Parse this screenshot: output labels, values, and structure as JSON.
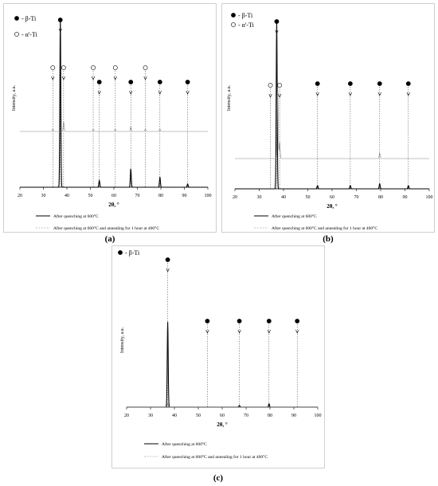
{
  "chart_data": [
    {
      "type": "line",
      "panel_label": "(a)",
      "xlabel": "2θ, °",
      "ylabel": "Intensity, a.u.",
      "xlim": [
        20,
        100
      ],
      "xticks": [
        20,
        30,
        40,
        50,
        60,
        70,
        80,
        90,
        100
      ],
      "legend_markers": [
        {
          "symbol": "filled",
          "text": "- β-Ti"
        },
        {
          "symbol": "open",
          "text": "- α'-Ti"
        }
      ],
      "series_legend": [
        {
          "style": "solid",
          "text": "After quenching at 600°C"
        },
        {
          "style": "dashed",
          "text": "After quenching at 600°C and annealing for 1 hour at 400°C"
        }
      ],
      "beta_peaks": [
        37.2,
        53.8,
        67.2,
        79.6,
        91.4
      ],
      "alpha_peaks": [
        34.0,
        38.6,
        51.2,
        60.6,
        73.4
      ],
      "series": [
        {
          "style": "solid",
          "peaks": [
            {
              "x": 37.2,
              "h": 1.0
            },
            {
              "x": 53.8,
              "h": 0.04
            },
            {
              "x": 67.2,
              "h": 0.11
            },
            {
              "x": 79.6,
              "h": 0.06
            },
            {
              "x": 91.4,
              "h": 0.02
            }
          ]
        },
        {
          "style": "dashed",
          "peaks": [
            {
              "x": 38.6,
              "h": 0.08
            },
            {
              "x": 34.0,
              "h": 0.02
            },
            {
              "x": 51.2,
              "h": 0.02
            },
            {
              "x": 60.6,
              "h": 0.02
            },
            {
              "x": 67.2,
              "h": 0.04
            },
            {
              "x": 73.4,
              "h": 0.02
            },
            {
              "x": 79.6,
              "h": 0.02
            }
          ]
        }
      ]
    },
    {
      "type": "line",
      "panel_label": "(b)",
      "xlabel": "2θ, °",
      "ylabel": "Intensity, a.u.",
      "xlim": [
        20,
        100
      ],
      "xticks": [
        20,
        30,
        40,
        50,
        60,
        70,
        80,
        90,
        100
      ],
      "legend_markers": [
        {
          "symbol": "filled",
          "text": "- β-Ti"
        },
        {
          "symbol": "open",
          "text": "- α'-Ti"
        }
      ],
      "series_legend": [
        {
          "style": "solid",
          "text": "After quenching at 600°C"
        },
        {
          "style": "dashed",
          "text": "After quenching at 600°C and annealing for 1 hour at 400°C"
        }
      ],
      "beta_peaks": [
        37.2,
        54.0,
        67.5,
        79.6,
        91.4
      ],
      "alpha_peaks": [
        34.6,
        38.4
      ],
      "series": [
        {
          "style": "solid",
          "peaks": [
            {
              "x": 37.2,
              "h": 1.0
            },
            {
              "x": 54.0,
              "h": 0.02
            },
            {
              "x": 67.5,
              "h": 0.02
            },
            {
              "x": 79.6,
              "h": 0.03
            },
            {
              "x": 91.4,
              "h": 0.02
            }
          ]
        },
        {
          "style": "dashed",
          "peaks": [
            {
              "x": 37.6,
              "h": 0.55
            },
            {
              "x": 38.4,
              "h": 0.12
            },
            {
              "x": 79.6,
              "h": 0.04
            }
          ]
        }
      ]
    },
    {
      "type": "line",
      "panel_label": "(c)",
      "xlabel": "2θ, °",
      "ylabel": "Intensity, a.u.",
      "xlim": [
        20,
        100
      ],
      "xticks": [
        20,
        30,
        40,
        50,
        60,
        70,
        80,
        90,
        100
      ],
      "legend_markers": [
        {
          "symbol": "filled",
          "text": "- β-Ti"
        }
      ],
      "series_legend": [
        {
          "style": "solid",
          "text": "After quenching at 600°C"
        },
        {
          "style": "dashed",
          "text": "After quenching at 600°C and annealing for 1 hour at 400°C"
        }
      ],
      "beta_peaks": [
        37.2,
        53.8,
        67.2,
        79.6,
        91.4
      ],
      "alpha_peaks": [],
      "series": [
        {
          "style": "solid",
          "peaks": [
            {
              "x": 37.2,
              "h": 1.0
            },
            {
              "x": 67.2,
              "h": 0.02
            },
            {
              "x": 79.6,
              "h": 0.04
            }
          ]
        },
        {
          "style": "dashed",
          "peaks": [
            {
              "x": 37.2,
              "h": 0.04
            },
            {
              "x": 79.6,
              "h": 0.01
            }
          ]
        }
      ]
    }
  ]
}
